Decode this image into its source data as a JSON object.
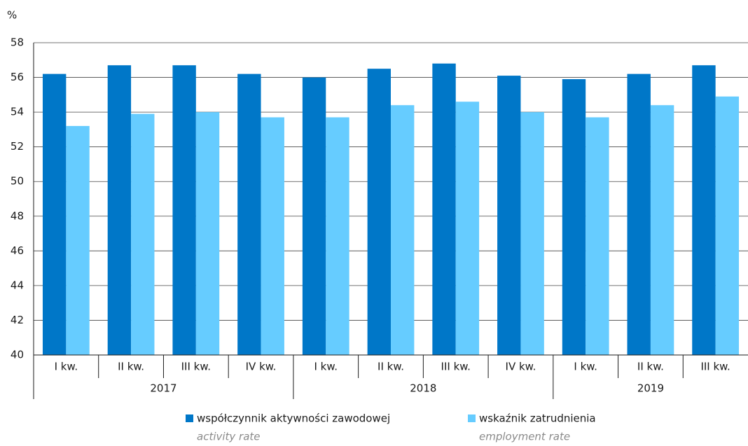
{
  "chart_data": {
    "type": "bar",
    "y_label": "%",
    "groups": [
      {
        "name": "2017",
        "categories": [
          "I kw.",
          "II kw.",
          "III kw.",
          "IV kw."
        ]
      },
      {
        "name": "2018",
        "categories": [
          "I kw.",
          "II kw.",
          "III kw.",
          "IV kw."
        ]
      },
      {
        "name": "2019",
        "categories": [
          "I kw.",
          "II kw.",
          "III kw."
        ]
      }
    ],
    "series": [
      {
        "name": "współczynnik aktywności zawodowej",
        "name_en": "activity rate",
        "color": "#0077c8",
        "values": [
          56.2,
          56.7,
          56.7,
          56.2,
          56.0,
          56.5,
          56.8,
          56.1,
          55.9,
          56.2,
          56.7
        ]
      },
      {
        "name": "wskaźnik zatrudnienia",
        "name_en": "employment rate",
        "color": "#66ccff",
        "values": [
          53.2,
          53.9,
          54.0,
          53.7,
          53.7,
          54.4,
          54.6,
          54.0,
          53.7,
          54.4,
          54.9
        ]
      }
    ],
    "ylim": [
      40,
      58
    ],
    "yticks": [
      40,
      42,
      44,
      46,
      48,
      50,
      52,
      54,
      56,
      58
    ],
    "grid": true
  }
}
